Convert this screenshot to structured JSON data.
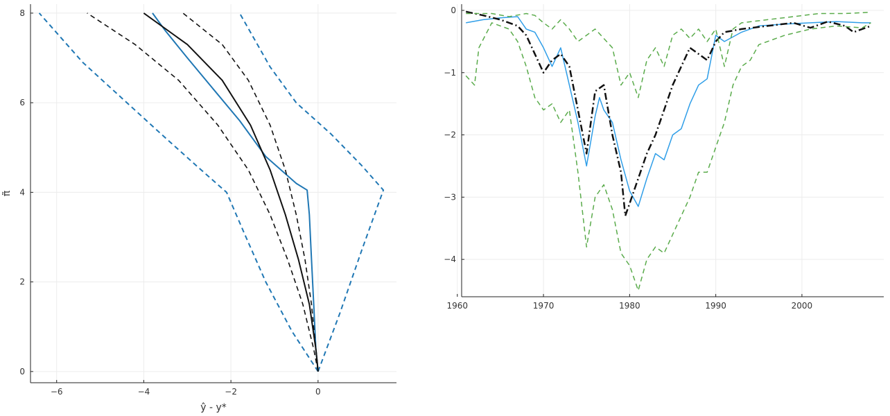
{
  "chart_data": [
    {
      "type": "line",
      "xlabel": "ŷ - y*",
      "ylabel": "π̃",
      "xlim": [
        -6.6,
        1.8
      ],
      "ylim": [
        -0.25,
        8.2
      ],
      "xticks": [
        -6,
        -4,
        -2,
        0
      ],
      "yticks": [
        0,
        2,
        4,
        6,
        8
      ],
      "grid": true,
      "legend": "none",
      "series": [
        {
          "color": "#1f77b4",
          "dash": "solid",
          "width": 2,
          "points": [
            [
              0,
              0
            ],
            [
              -0.05,
              0.5
            ],
            [
              -0.1,
              1.5
            ],
            [
              -0.15,
              2.5
            ],
            [
              -0.2,
              3.5
            ],
            [
              -0.25,
              4.05
            ],
            [
              -0.5,
              4.2
            ],
            [
              -1.2,
              4.8
            ],
            [
              -1.8,
              5.6
            ],
            [
              -2.4,
              6.3
            ],
            [
              -3.0,
              7.0
            ],
            [
              -3.5,
              7.6
            ],
            [
              -3.8,
              8.0
            ]
          ]
        },
        {
          "color": "#1f77b4",
          "dash": "dashed",
          "width": 2,
          "points": [
            [
              0,
              0
            ],
            [
              -0.6,
              0.9
            ],
            [
              -1.2,
              2.0
            ],
            [
              -1.7,
              3.1
            ],
            [
              -2.1,
              4.0
            ],
            [
              -2.8,
              4.6
            ],
            [
              -3.6,
              5.3
            ],
            [
              -4.5,
              6.1
            ],
            [
              -5.4,
              6.9
            ],
            [
              -6.4,
              8.0
            ]
          ]
        },
        {
          "color": "#1f77b4",
          "dash": "dashed",
          "width": 2,
          "points": [
            [
              0,
              0
            ],
            [
              0.5,
              1.3
            ],
            [
              1.0,
              2.7
            ],
            [
              1.5,
              4.05
            ],
            [
              1.0,
              4.6
            ],
            [
              0.3,
              5.3
            ],
            [
              -0.5,
              6.0
            ],
            [
              -1.1,
              6.8
            ],
            [
              -1.8,
              8.0
            ]
          ]
        },
        {
          "color": "#111111",
          "dash": "solid",
          "width": 2,
          "points": [
            [
              0,
              0
            ],
            [
              -0.05,
              0.5
            ],
            [
              -0.2,
              1.5
            ],
            [
              -0.45,
              2.5
            ],
            [
              -0.75,
              3.5
            ],
            [
              -1.1,
              4.5
            ],
            [
              -1.55,
              5.5
            ],
            [
              -2.2,
              6.5
            ],
            [
              -3.0,
              7.3
            ],
            [
              -4.0,
              8.0
            ]
          ]
        },
        {
          "color": "#111111",
          "dash": "dashed",
          "width": 1.6,
          "points": [
            [
              0,
              0
            ],
            [
              -0.1,
              0.5
            ],
            [
              -0.35,
              1.5
            ],
            [
              -0.7,
              2.5
            ],
            [
              -1.1,
              3.5
            ],
            [
              -1.6,
              4.5
            ],
            [
              -2.3,
              5.5
            ],
            [
              -3.2,
              6.5
            ],
            [
              -4.2,
              7.3
            ],
            [
              -5.3,
              8.0
            ]
          ]
        },
        {
          "color": "#111111",
          "dash": "dashed",
          "width": 1.6,
          "points": [
            [
              0,
              0
            ],
            [
              -0.05,
              0.5
            ],
            [
              -0.15,
              1.5
            ],
            [
              -0.3,
              2.5
            ],
            [
              -0.5,
              3.5
            ],
            [
              -0.75,
              4.5
            ],
            [
              -1.1,
              5.5
            ],
            [
              -1.6,
              6.5
            ],
            [
              -2.2,
              7.3
            ],
            [
              -3.1,
              8.0
            ]
          ]
        }
      ]
    },
    {
      "type": "line",
      "xlabel": "",
      "ylabel": "",
      "xlim": [
        1960.5,
        2009.5
      ],
      "ylim": [
        -4.6,
        0.1
      ],
      "xticks": [
        1960,
        1970,
        1980,
        1990,
        2000
      ],
      "yticks": [
        0,
        -1,
        -2,
        -3,
        -4
      ],
      "grid": true,
      "legend": "none",
      "series": [
        {
          "color": "#2f9ee8",
          "dash": "solid",
          "width": 1.5,
          "points": [
            [
              1961,
              -0.2
            ],
            [
              1963,
              -0.15
            ],
            [
              1965,
              -0.12
            ],
            [
              1967,
              -0.1
            ],
            [
              1968,
              -0.3
            ],
            [
              1969,
              -0.35
            ],
            [
              1970,
              -0.6
            ],
            [
              1971,
              -0.9
            ],
            [
              1972,
              -0.6
            ],
            [
              1973,
              -1.2
            ],
            [
              1974,
              -1.8
            ],
            [
              1975,
              -2.5
            ],
            [
              1976,
              -1.7
            ],
            [
              1976.5,
              -1.4
            ],
            [
              1977,
              -1.6
            ],
            [
              1978,
              -1.8
            ],
            [
              1979,
              -2.4
            ],
            [
              1980,
              -2.9
            ],
            [
              1981,
              -3.15
            ],
            [
              1982,
              -2.7
            ],
            [
              1983,
              -2.3
            ],
            [
              1984,
              -2.4
            ],
            [
              1985,
              -2.0
            ],
            [
              1986,
              -1.9
            ],
            [
              1987,
              -1.5
            ],
            [
              1988,
              -1.2
            ],
            [
              1989,
              -1.1
            ],
            [
              1990,
              -0.4
            ],
            [
              1991,
              -0.5
            ],
            [
              1993,
              -0.35
            ],
            [
              1995,
              -0.25
            ],
            [
              1998,
              -0.22
            ],
            [
              2001,
              -0.2
            ],
            [
              2004,
              -0.18
            ],
            [
              2007,
              -0.2
            ],
            [
              2008,
              -0.2
            ]
          ]
        },
        {
          "color": "#111111",
          "dash": "dashdot",
          "width": 2.5,
          "points": [
            [
              1961,
              -0.02
            ],
            [
              1963,
              -0.08
            ],
            [
              1965,
              -0.15
            ],
            [
              1967,
              -0.25
            ],
            [
              1968,
              -0.4
            ],
            [
              1969,
              -0.7
            ],
            [
              1970,
              -1.0
            ],
            [
              1971,
              -0.8
            ],
            [
              1972,
              -0.7
            ],
            [
              1973,
              -0.9
            ],
            [
              1974,
              -1.6
            ],
            [
              1975,
              -2.3
            ],
            [
              1976,
              -1.3
            ],
            [
              1977,
              -1.2
            ],
            [
              1978,
              -2.0
            ],
            [
              1979,
              -2.6
            ],
            [
              1979.5,
              -3.3
            ],
            [
              1980,
              -3.1
            ],
            [
              1981,
              -2.7
            ],
            [
              1982,
              -2.3
            ],
            [
              1983,
              -2.0
            ],
            [
              1984,
              -1.6
            ],
            [
              1985,
              -1.2
            ],
            [
              1986,
              -0.9
            ],
            [
              1987,
              -0.6
            ],
            [
              1988,
              -0.7
            ],
            [
              1989,
              -0.8
            ],
            [
              1990,
              -0.5
            ],
            [
              1991,
              -0.35
            ],
            [
              1993,
              -0.3
            ],
            [
              1996,
              -0.25
            ],
            [
              1999,
              -0.2
            ],
            [
              2001,
              -0.28
            ],
            [
              2003,
              -0.18
            ],
            [
              2005,
              -0.25
            ],
            [
              2006,
              -0.35
            ],
            [
              2008,
              -0.25
            ]
          ]
        },
        {
          "color": "#5aab4b",
          "dash": "dashed",
          "width": 1.5,
          "points": [
            [
              1961,
              -1.05
            ],
            [
              1962,
              -1.2
            ],
            [
              1962.5,
              -0.6
            ],
            [
              1964,
              -0.2
            ],
            [
              1966,
              -0.3
            ],
            [
              1967,
              -0.5
            ],
            [
              1968,
              -0.9
            ],
            [
              1969,
              -1.4
            ],
            [
              1970,
              -1.6
            ],
            [
              1971,
              -1.5
            ],
            [
              1972,
              -1.8
            ],
            [
              1973,
              -1.6
            ],
            [
              1974,
              -2.6
            ],
            [
              1975,
              -3.8
            ],
            [
              1976,
              -3.0
            ],
            [
              1977,
              -2.8
            ],
            [
              1978,
              -3.2
            ],
            [
              1979,
              -3.9
            ],
            [
              1980,
              -4.1
            ],
            [
              1981,
              -4.5
            ],
            [
              1982,
              -4.0
            ],
            [
              1983,
              -3.8
            ],
            [
              1984,
              -3.9
            ],
            [
              1985,
              -3.6
            ],
            [
              1986,
              -3.3
            ],
            [
              1987,
              -3.0
            ],
            [
              1988,
              -2.6
            ],
            [
              1989,
              -2.6
            ],
            [
              1990,
              -2.2
            ],
            [
              1991,
              -1.8
            ],
            [
              1992,
              -1.2
            ],
            [
              1993,
              -0.9
            ],
            [
              1994,
              -0.8
            ],
            [
              1995,
              -0.55
            ],
            [
              1998,
              -0.4
            ],
            [
              2001,
              -0.3
            ],
            [
              2004,
              -0.25
            ],
            [
              2007,
              -0.28
            ],
            [
              2008,
              -0.2
            ]
          ]
        },
        {
          "color": "#5aab4b",
          "dash": "dashed",
          "width": 1.5,
          "points": [
            [
              1961,
              -0.05
            ],
            [
              1964,
              -0.05
            ],
            [
              1966,
              -0.1
            ],
            [
              1968,
              -0.05
            ],
            [
              1969,
              -0.08
            ],
            [
              1970,
              -0.2
            ],
            [
              1971,
              -0.3
            ],
            [
              1972,
              -0.15
            ],
            [
              1973,
              -0.3
            ],
            [
              1974,
              -0.5
            ],
            [
              1975,
              -0.4
            ],
            [
              1976,
              -0.3
            ],
            [
              1977,
              -0.45
            ],
            [
              1978,
              -0.6
            ],
            [
              1979,
              -1.2
            ],
            [
              1980,
              -1.0
            ],
            [
              1981,
              -1.4
            ],
            [
              1982,
              -0.8
            ],
            [
              1983,
              -0.6
            ],
            [
              1984,
              -0.9
            ],
            [
              1985,
              -0.4
            ],
            [
              1986,
              -0.3
            ],
            [
              1987,
              -0.45
            ],
            [
              1988,
              -0.3
            ],
            [
              1989,
              -0.5
            ],
            [
              1990,
              -0.3
            ],
            [
              1991,
              -0.9
            ],
            [
              1992,
              -0.3
            ],
            [
              1993,
              -0.2
            ],
            [
              1996,
              -0.15
            ],
            [
              1999,
              -0.1
            ],
            [
              2002,
              -0.05
            ],
            [
              2005,
              -0.05
            ],
            [
              2008,
              -0.03
            ]
          ]
        }
      ]
    }
  ]
}
